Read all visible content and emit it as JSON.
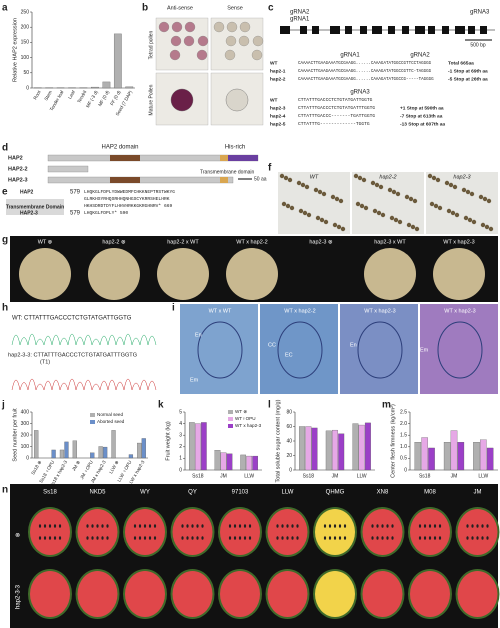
{
  "panels": {
    "a": {
      "label": "a",
      "ylabel": "Relative HAP2 expression",
      "categories": [
        "Root",
        "Stem",
        "Tender leaf",
        "Leaf",
        "Tendril",
        "MF (-3 d)",
        "MF (0 d)",
        "FF (0 d)",
        "Seed (7 DAP)"
      ],
      "values": [
        1,
        1,
        1,
        1,
        1,
        3,
        20,
        178,
        4
      ],
      "ylim": [
        0,
        250
      ],
      "yticks": [
        0,
        50,
        100,
        150,
        200,
        250
      ],
      "color": "#b0b0b0"
    },
    "b": {
      "label": "b",
      "cols": [
        "Anti-sense",
        "Sense"
      ],
      "rows": [
        "Tetrad pollen",
        "Mature Pollen"
      ]
    },
    "c": {
      "label": "c",
      "guides": [
        "gRNA2",
        "gRNA1",
        "gRNA3"
      ],
      "scale": "500 bp",
      "head1": [
        "gRNA1",
        "gRNA2"
      ],
      "rows1": [
        [
          "WT",
          "CAAAACTTGAAGAAATGCGAAGG......CAAAGATATGGCCGTTCCTAGGGG",
          "Total 665aa"
        ],
        [
          "hap2-1",
          "CAAAACTTGAAGAAATGCGAAGG......CAAAGATATGGCCGTTC-TAGGGG",
          "-1  Stop at 69th aa"
        ],
        [
          "hap2-2",
          "CAAAACTTGAAGAAATGCGAAGG......CAAAGATATGGCCG-----TAGGGG",
          "-5  Stop at 26th aa"
        ]
      ],
      "head2": "gRNA3",
      "rows2": [
        [
          "WT",
          "CTTATTTGACCCTCTGTATGATTGGTG",
          ""
        ],
        [
          "hap2-3",
          "CTTATTTGACCCTCTGTATGATTTGGTG",
          "+1  Stop at 590th aa"
        ],
        [
          "hap2-4",
          "CTTATTTGACCC-------TGATTGGTG",
          "-7  Stop at 613th aa"
        ],
        [
          "hap2-5",
          "CTTATTTG-------------TGGTG",
          "-13  Stop at 607th aa"
        ]
      ]
    },
    "d": {
      "label": "d",
      "rows": [
        "HAP2",
        "HAP2-2",
        "HAP2-3"
      ],
      "domain": "HAP2 domain",
      "his": "His-rich",
      "tm": "Transmembrane domain",
      "scale": "50 aa"
    },
    "e": {
      "label": "e",
      "box": "Transmembrane Domain",
      "lines": [
        [
          "HAP2",
          "579",
          "LHQKGLFDPLYDWWEDMFCHKKNEPTRSTWKYG"
        ],
        [
          "",
          "",
          "GLRKHSYRHQSRHHQNHGSCYKRRSHELHRK"
        ],
        [
          "",
          "",
          "HKHSDRDTDYFLHHVHRKKGKRGHNRV* 669"
        ],
        [
          "HAP2-3",
          "579",
          "LHQKGLFDPLY* 590"
        ]
      ]
    },
    "f": {
      "label": "f",
      "cols": [
        "WT",
        "hap2-2",
        "hap2-3"
      ]
    },
    "g": {
      "label": "g",
      "cols": [
        "WT ⊗",
        "hap2-2 ⊗",
        "hap2-2 x WT",
        "WT x hap2-2",
        "hap2-3 ⊗",
        "hap2-3 x WT",
        "WT x hap2-3"
      ]
    },
    "h": {
      "label": "h",
      "wt": "WT: CTTATTTGACCCTCTGTATGATTGGTG",
      "mut": "hap2-3-3: CTTATTTGACCCTCTGTATGATTTGGTG",
      "sub": "(T1)"
    },
    "i": {
      "label": "i",
      "cols": [
        "WT x WT",
        "WT x hap2-2",
        "WT x hap2-3",
        "WT x hap2-3"
      ],
      "tags": [
        "En",
        "Em",
        "CC",
        "EC",
        "En",
        "Em"
      ]
    },
    "j": {
      "label": "j",
      "ylabel": "Seed number per fruit",
      "categories": [
        "Ss18 ⊗",
        "Ss18 ♀OPU",
        "Ss18 x hap2-3",
        "JM ⊗",
        "JM ♀OPU",
        "JM x hap2-3",
        "LLW ⊗",
        "LLW ♀OPU",
        "LLW x hap2-3"
      ],
      "series": [
        {
          "name": "Normal seed",
          "color": "#b0b0b0",
          "values": [
            240,
            0,
            70,
            150,
            0,
            100,
            240,
            0,
            130
          ]
        },
        {
          "name": "Aborted seed",
          "color": "#6b8fc9",
          "values": [
            0,
            70,
            140,
            0,
            45,
            95,
            0,
            30,
            170
          ]
        }
      ],
      "ylim": [
        0,
        400
      ],
      "yticks": [
        0,
        100,
        200,
        300,
        400
      ]
    },
    "k": {
      "label": "k",
      "ylabel": "Fruit weight (kg)",
      "categories": [
        "Ss18",
        "JM",
        "LLW"
      ],
      "series": [
        {
          "name": "WT ⊗",
          "color": "#b0b0b0",
          "values": [
            4.1,
            1.7,
            1.3
          ]
        },
        {
          "name": "WT♀OPU",
          "color": "#e6a8e6",
          "values": [
            4.0,
            1.5,
            1.2
          ]
        },
        {
          "name": "WT x hap2-3",
          "color": "#9b3fc7",
          "values": [
            4.1,
            1.4,
            1.2
          ]
        }
      ],
      "ylim": [
        0,
        5
      ],
      "yticks": [
        0,
        1,
        2,
        3,
        4,
        5
      ]
    },
    "l": {
      "label": "l",
      "ylabel": "Total soluble sugar content (mg/g)",
      "categories": [
        "Ss18",
        "JM",
        "LLW"
      ],
      "series": [
        {
          "color": "#b0b0b0",
          "values": [
            60,
            54,
            64
          ]
        },
        {
          "color": "#e6a8e6",
          "values": [
            60,
            55,
            62
          ]
        },
        {
          "color": "#9b3fc7",
          "values": [
            58,
            50,
            65
          ]
        }
      ],
      "ylim": [
        0,
        80
      ],
      "yticks": [
        0,
        20,
        40,
        60,
        80
      ]
    },
    "m": {
      "label": "m",
      "ylabel": "Center flesh firmness (kg/cm²)",
      "categories": [
        "Ss18",
        "JM",
        "LLW"
      ],
      "series": [
        {
          "color": "#b0b0b0",
          "values": [
            1.2,
            1.2,
            1.2
          ]
        },
        {
          "color": "#e6a8e6",
          "values": [
            1.4,
            1.7,
            1.3
          ]
        },
        {
          "color": "#9b3fc7",
          "values": [
            0.95,
            1.2,
            0.95
          ]
        }
      ],
      "ylim": [
        0,
        2.5
      ],
      "yticks": [
        0,
        0.5,
        {
          "value": 1,
          "label": "1.0"
        },
        1.5,
        {
          "value": 2,
          "label": "2.0"
        },
        2.5
      ]
    },
    "n": {
      "label": "n",
      "cultivars": [
        "Ss18",
        "NKD5",
        "WY",
        "QY",
        "97103",
        "LLW",
        "QHMG",
        "XN8",
        "M08",
        "JM"
      ],
      "rows": [
        "⊗",
        "hap2-3-3"
      ]
    }
  }
}
